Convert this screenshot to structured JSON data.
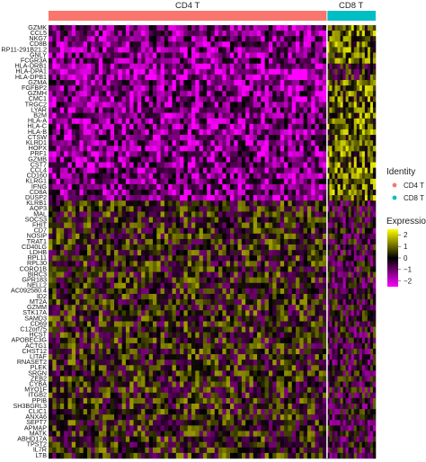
{
  "chart_data": {
    "type": "heatmap",
    "groups": [
      {
        "name": "CD4 T",
        "color": "#F8766D",
        "cell_fraction": 0.85
      },
      {
        "name": "CD8 T",
        "color": "#00BFC4",
        "cell_fraction": 0.15
      }
    ],
    "genes": [
      "GZMK",
      "CCL5",
      "NKG7",
      "CD8B",
      "RP11-291B21.2",
      "GNLY",
      "FCGR3A",
      "HLA-DRB1",
      "HLA-DPA1",
      "HLA-DPB1",
      "GZMA",
      "FGFBP2",
      "GZMH",
      "CMC1",
      "TRGC2",
      "LYAR",
      "B2M",
      "HLA-A",
      "HLA-C",
      "HLA-B",
      "CTSW",
      "KLRD1",
      "HOPX",
      "PRF1",
      "GZMB",
      "CST7",
      "CCL4",
      "CD160",
      "KLRG1",
      "IFNG",
      "CD8A",
      "DUSP2",
      "KLRB1",
      "AQP3",
      "MAL",
      "SOCS3",
      "FHIT",
      "CD7",
      "NOSIP",
      "TRAT1",
      "CD40LG",
      "LDHB",
      "RPL11",
      "RPL30",
      "CORO1B",
      "BIRC3",
      "GPR183",
      "NELL2",
      "AC092580.4",
      "ID2",
      "MT2A",
      "GZMM",
      "STK17A",
      "SAMD3",
      "CD69",
      "C12orf75",
      "HCST",
      "APOBEC3G",
      "ACTG1",
      "CHST12",
      "LITAF",
      "RNASET2",
      "PLEK",
      "SRGN",
      "ZEB2",
      "CYBA",
      "MYO1F",
      "ITGB2",
      "PPIB",
      "SH3BGRL3",
      "CLIC1",
      "ANXA6",
      "SEPT7",
      "APMAP",
      "MATK",
      "ABHD17A",
      "TPST2",
      "IL7R",
      "LTB"
    ],
    "expression_direction": {
      "CD4 T": "low for cytotoxic / CD8-associated genes (GZMK through DUSP2), mixed-to-high for KLRB1 onward",
      "CD8 T": "high for cytotoxic / CD8-associated genes, mixed for the rest"
    },
    "legend_identity": {
      "title": "Identity",
      "entries": [
        "CD4 T",
        "CD8 T"
      ]
    },
    "legend_expression": {
      "title": "Expression",
      "range": [
        -2.5,
        2.5
      ],
      "ticks": [
        "2",
        "1",
        "0",
        "−1",
        "−2"
      ],
      "colors": [
        "#FF00FF",
        "#000000",
        "#FFFF00"
      ]
    },
    "legend_placement": "right",
    "grid": false
  }
}
